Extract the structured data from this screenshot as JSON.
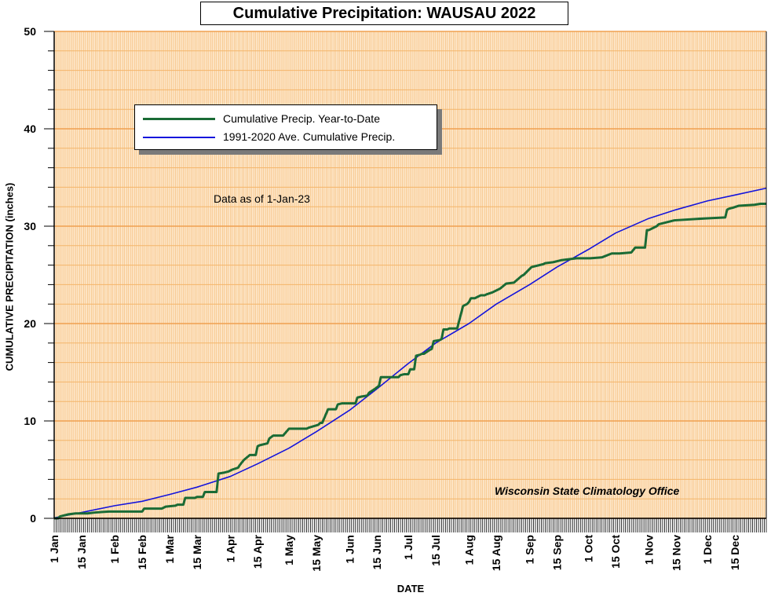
{
  "chart_data": {
    "type": "line",
    "title": "Cumulative Precipitation: WAUSAU 2022",
    "xlabel": "DATE",
    "ylabel": "CUMULATIVE PRECIPITATION (inches)",
    "ylim": [
      0,
      50
    ],
    "y_ticks": [
      "0",
      "10",
      "20",
      "30",
      "40",
      "50"
    ],
    "x_ticks": [
      "1 Jan",
      "15 Jan",
      "1 Feb",
      "15 Feb",
      "1 Mar",
      "15 Mar",
      "1 Apr",
      "15 Apr",
      "1 May",
      "15 May",
      "1 Jun",
      "15 Jun",
      "1 Jul",
      "15 Jul",
      "1 Aug",
      "15 Aug",
      "1 Sep",
      "15 Sep",
      "1 Oct",
      "15 Oct",
      "1 Nov",
      "15 Nov",
      "1 Dec",
      "15 Dec"
    ],
    "x_tick_days": [
      1,
      15,
      32,
      46,
      60,
      74,
      91,
      105,
      121,
      135,
      152,
      166,
      182,
      196,
      213,
      227,
      244,
      258,
      274,
      288,
      305,
      319,
      335,
      349
    ],
    "grid": true,
    "legend_position": "top-left",
    "note": "Data as of 1-Jan-23",
    "credit": "Wisconsin State Climatology Office",
    "colors": {
      "plot_bg": "#fde6c8",
      "grid_major": "#f0a050",
      "grid_minor": "#f4b56a",
      "ytd": "#1a6b35",
      "avg": "#1414dc"
    },
    "series": [
      {
        "name": "Cumulative Precip. Year-to-Date",
        "x": [
          1,
          3,
          4,
          8,
          12,
          18,
          22,
          29,
          46,
          47,
          56,
          58,
          63,
          64,
          67,
          68,
          73,
          74,
          77,
          78,
          79,
          84,
          85,
          88,
          90,
          92,
          95,
          96,
          98,
          101,
          104,
          105,
          106,
          110,
          111,
          113,
          118,
          121,
          127,
          130,
          131,
          136,
          137,
          138,
          141,
          145,
          146,
          148,
          155,
          156,
          158,
          161,
          162,
          165,
          167,
          168,
          173,
          175,
          177,
          178,
          180,
          182,
          183,
          185,
          186,
          188,
          189,
          190,
          193,
          194,
          195,
          198,
          199,
          200,
          202,
          203,
          206,
          207,
          210,
          212,
          213,
          214,
          216,
          219,
          221,
          222,
          225,
          229,
          232,
          236,
          240,
          241,
          245,
          251,
          252,
          256,
          260,
          264,
          268,
          275,
          281,
          286,
          290,
          296,
          298,
          299,
          303,
          304,
          305,
          309,
          310,
          318,
          334,
          344,
          345,
          346,
          348,
          351,
          359,
          362,
          365
        ],
        "values": [
          0.0,
          0.0,
          0.2,
          0.4,
          0.5,
          0.5,
          0.6,
          0.7,
          0.7,
          1.0,
          1.0,
          1.2,
          1.3,
          1.4,
          1.4,
          2.1,
          2.1,
          2.2,
          2.2,
          2.7,
          2.7,
          2.7,
          4.6,
          4.7,
          4.8,
          5.0,
          5.2,
          5.5,
          6.0,
          6.5,
          6.5,
          7.4,
          7.5,
          7.7,
          8.2,
          8.5,
          8.5,
          9.2,
          9.2,
          9.2,
          9.3,
          9.6,
          9.8,
          9.8,
          11.2,
          11.2,
          11.7,
          11.8,
          11.8,
          12.4,
          12.5,
          12.6,
          12.9,
          13.3,
          13.6,
          14.5,
          14.5,
          14.5,
          14.5,
          14.7,
          14.8,
          14.8,
          15.3,
          15.3,
          16.7,
          16.8,
          16.9,
          16.9,
          17.3,
          17.4,
          18.2,
          18.3,
          18.4,
          19.4,
          19.4,
          19.5,
          19.5,
          19.5,
          21.8,
          22.0,
          22.2,
          22.6,
          22.6,
          22.9,
          22.9,
          23.0,
          23.2,
          23.6,
          24.1,
          24.2,
          24.9,
          25.0,
          25.8,
          26.1,
          26.2,
          26.3,
          26.5,
          26.6,
          26.7,
          26.7,
          26.8,
          27.2,
          27.2,
          27.3,
          27.8,
          27.8,
          27.8,
          29.6,
          29.6,
          30.0,
          30.2,
          30.6,
          30.8,
          30.9,
          31.7,
          31.8,
          31.9,
          32.1,
          32.2,
          32.3,
          32.3
        ],
        "color": "#1a6b35"
      },
      {
        "name": "1991-2020 Ave. Cumulative Precip.",
        "x": [
          1,
          15,
          32,
          46,
          60,
          74,
          91,
          105,
          121,
          135,
          152,
          166,
          182,
          196,
          213,
          227,
          244,
          258,
          274,
          288,
          305,
          319,
          335,
          349,
          365
        ],
        "values": [
          0.05,
          0.6,
          1.3,
          1.75,
          2.45,
          3.2,
          4.3,
          5.6,
          7.2,
          8.9,
          11.1,
          13.3,
          15.9,
          18.0,
          20.0,
          22.0,
          24.0,
          25.8,
          27.6,
          29.3,
          30.8,
          31.7,
          32.6,
          33.2,
          33.9
        ],
        "color": "#1414dc"
      }
    ]
  }
}
